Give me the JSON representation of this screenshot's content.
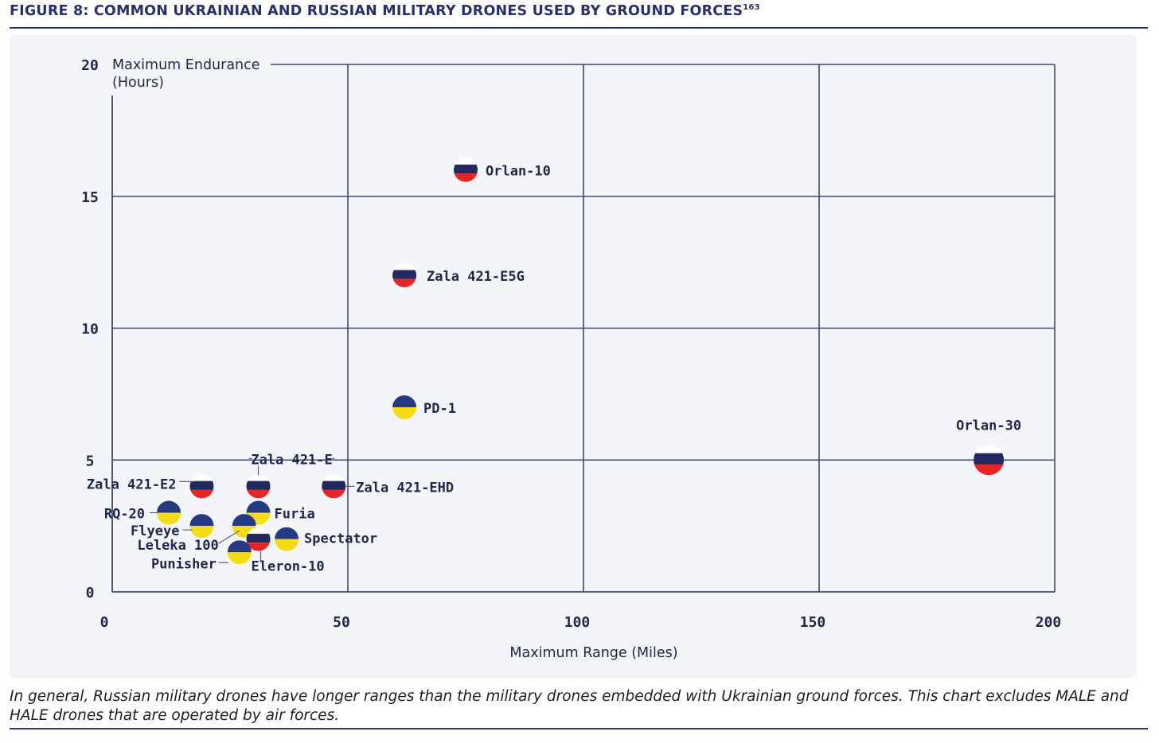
{
  "figure": {
    "title": "FIGURE 8: COMMON UKRAINIAN AND RUSSIAN MILITARY DRONES USED BY GROUND FORCES",
    "footnote_ref": "163",
    "caption": "In general, Russian military drones have longer ranges than the military drones embedded with Ukrainian ground forces. This chart excludes MALE and HALE drones that are operated by air forces."
  },
  "colors": {
    "russia_top": "#ffffff",
    "russia_mid": "#222a62",
    "russia_bottom": "#e62626",
    "ukraine_top": "#253a85",
    "ukraine_bottom": "#f6dc16",
    "grid": "#3d4670",
    "text": "#20284f"
  },
  "chart_data": {
    "type": "scatter",
    "xlabel": "Maximum Range (Miles)",
    "ylabel": "Maximum Endurance (Hours)",
    "ylabel_lines": [
      "Maximum Endurance",
      "(Hours)"
    ],
    "xlim": [
      0,
      200
    ],
    "ylim": [
      0,
      20
    ],
    "xticks": [
      0,
      50,
      100,
      150,
      200
    ],
    "yticks": [
      0,
      5,
      10,
      15,
      20
    ],
    "grid": true,
    "points": [
      {
        "label": "Orlan-10",
        "x": 75,
        "y": 16,
        "country": "russia"
      },
      {
        "label": "Zala 421-E5G",
        "x": 62,
        "y": 12,
        "country": "russia"
      },
      {
        "label": "PD-1",
        "x": 62,
        "y": 7,
        "country": "ukraine"
      },
      {
        "label": "Orlan-30",
        "x": 186,
        "y": 5,
        "country": "russia"
      },
      {
        "label": "Zala 421-E2",
        "x": 19,
        "y": 4,
        "country": "russia"
      },
      {
        "label": "Zala 421-E",
        "x": 31,
        "y": 4,
        "country": "russia"
      },
      {
        "label": "Zala 421-EHD",
        "x": 47,
        "y": 4,
        "country": "russia"
      },
      {
        "label": "RQ-20",
        "x": 12,
        "y": 3,
        "country": "ukraine"
      },
      {
        "label": "Furia",
        "x": 31,
        "y": 3,
        "country": "ukraine"
      },
      {
        "label": "Flyeye",
        "x": 19,
        "y": 2.5,
        "country": "ukraine"
      },
      {
        "label": "Leleka 100",
        "x": 28,
        "y": 2.5,
        "country": "ukraine"
      },
      {
        "label": "Eleron-10",
        "x": 31,
        "y": 2,
        "country": "russia"
      },
      {
        "label": "Spectator",
        "x": 37,
        "y": 2,
        "country": "ukraine"
      },
      {
        "label": "Punisher",
        "x": 27,
        "y": 1.5,
        "country": "ukraine"
      }
    ]
  }
}
